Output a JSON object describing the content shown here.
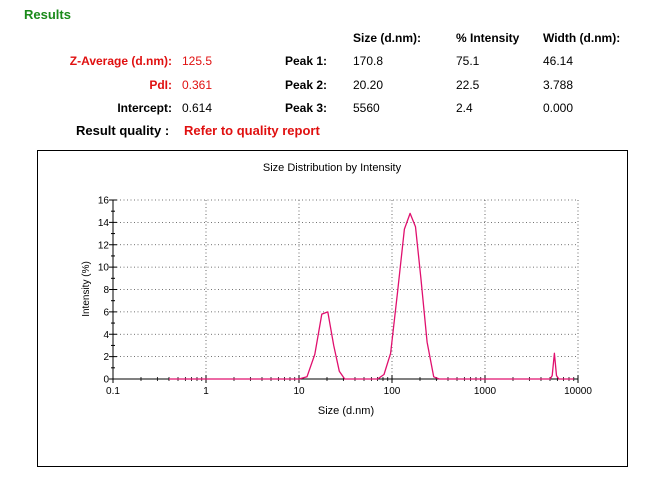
{
  "section_title": "Results",
  "table_headers": {
    "size": "Size (d.nm):",
    "intensity": "% Intensity",
    "width": "Width (d.nm):"
  },
  "summary": {
    "z_average": {
      "label": "Z-Average (d.nm):",
      "value": "125.5"
    },
    "pdi": {
      "label": "PdI:",
      "value": "0.361"
    },
    "intercept": {
      "label": "Intercept:",
      "value": "0.614"
    }
  },
  "peaks": [
    {
      "label": "Peak 1:",
      "size": "170.8",
      "intensity": "75.1",
      "width": "46.14"
    },
    {
      "label": "Peak 2:",
      "size": "20.20",
      "intensity": "22.5",
      "width": "3.788"
    },
    {
      "label": "Peak 3:",
      "size": "5560",
      "intensity": "2.4",
      "width": "0.000"
    }
  ],
  "result_quality": {
    "label": "Result quality :",
    "value": "Refer to quality report"
  },
  "colors": {
    "title_green": "#1a8a1a",
    "alert_red": "#e01010",
    "curve": "#e0106e"
  },
  "chart_data": {
    "type": "line",
    "title": "Size Distribution by Intensity",
    "xlabel": "Size (d.nm)",
    "ylabel": "Intensity (%)",
    "xscale": "log",
    "xlim": [
      0.1,
      10000
    ],
    "ylim": [
      0,
      16
    ],
    "x_ticks": [
      0.1,
      1,
      10,
      100,
      1000,
      10000
    ],
    "x_tick_labels": [
      "0.1",
      "1",
      "10",
      "100",
      "1000",
      "10000"
    ],
    "y_ticks": [
      0,
      2,
      4,
      6,
      8,
      10,
      12,
      14,
      16
    ],
    "y_tick_labels": [
      "0",
      "2",
      "4",
      "6",
      "8",
      "10",
      "12",
      "14",
      "16"
    ],
    "grid": "dotted",
    "series": [
      {
        "x": [
          0.4,
          10.0,
          12.2,
          14.8,
          17.6,
          20.4,
          23.6,
          27.1,
          31.0,
          70.0,
          82.1,
          96.5,
          115.0,
          135.8,
          156.4,
          179.1,
          204.7,
          238.4,
          281.0,
          322.0,
          5000,
          5278,
          5571,
          5874,
          6209,
          9000
        ],
        "y": [
          0,
          0,
          0.2,
          2.2,
          5.8,
          6.0,
          3.0,
          0.7,
          0,
          0,
          0.4,
          2.3,
          7.8,
          13.4,
          14.8,
          13.6,
          9.0,
          3.3,
          0.2,
          0,
          0,
          0.3,
          2.3,
          0.3,
          0,
          0
        ]
      }
    ]
  }
}
